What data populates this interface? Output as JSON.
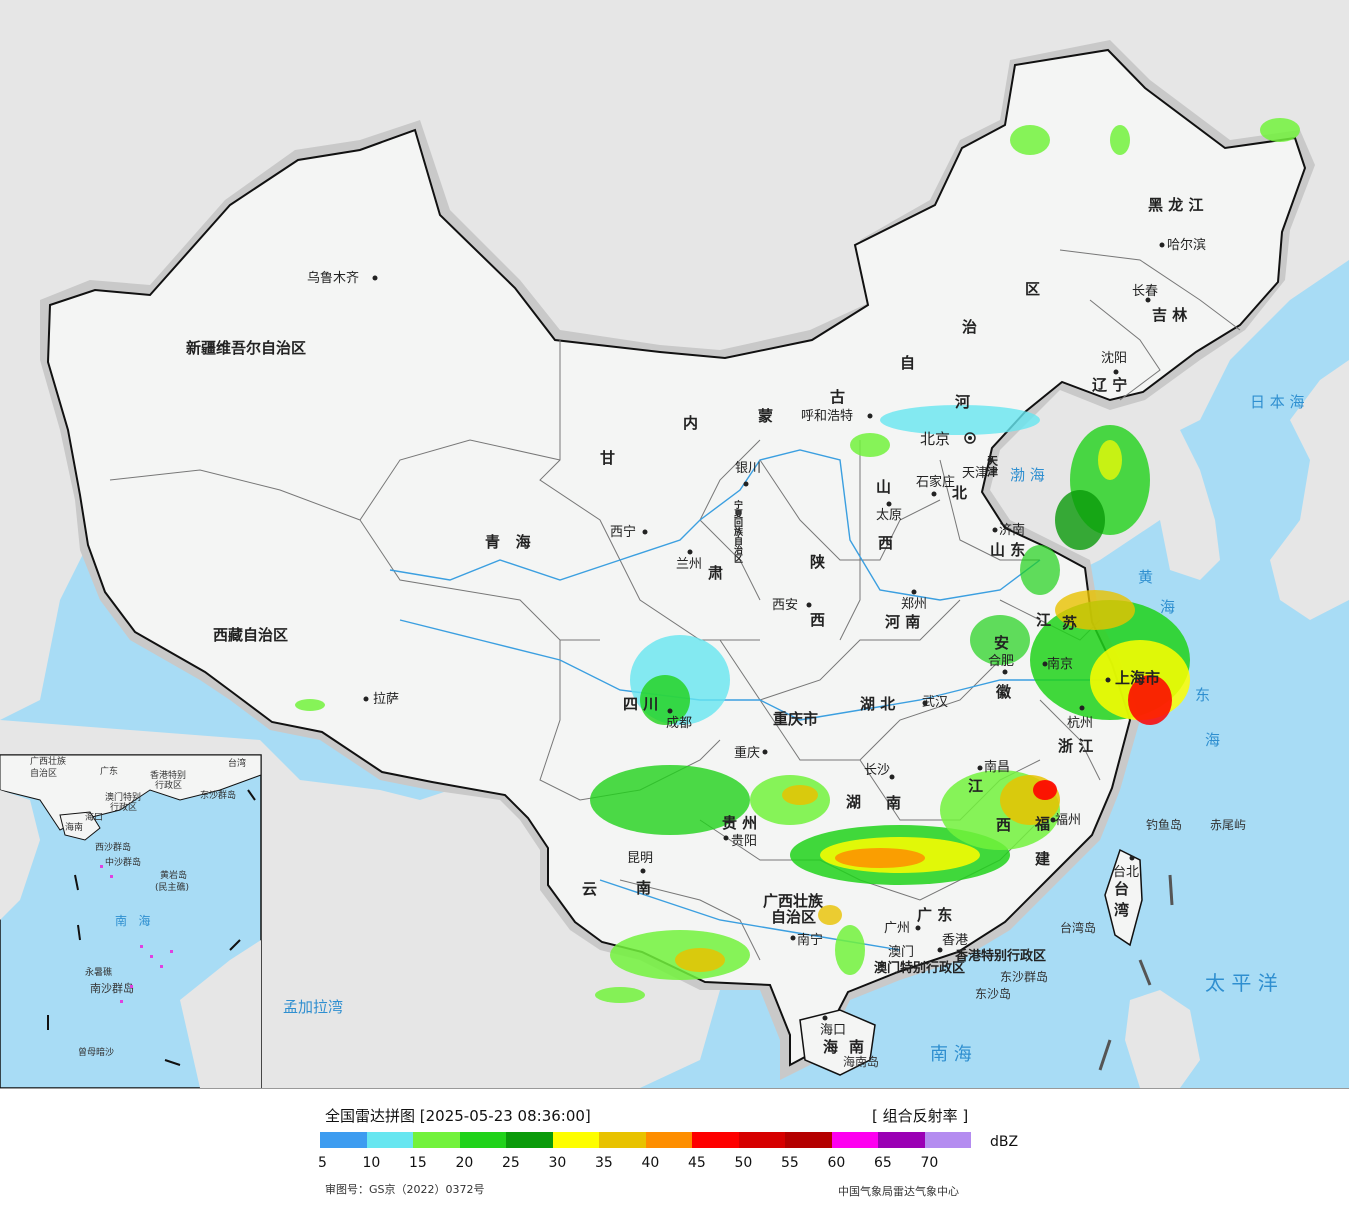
{
  "legend": {
    "title": "全国雷达拼图 [2025-05-23 08:36:00]",
    "product": "[ 组合反射率 ]",
    "unit": "dBZ",
    "colors": [
      "#3d9cf0",
      "#67e6f0",
      "#72f23c",
      "#20d21a",
      "#0a9a0a",
      "#fefe00",
      "#e8c200",
      "#fe8e00",
      "#fe0000",
      "#d60000",
      "#b40000",
      "#fe00f0",
      "#9a00b4",
      "#b48cf0"
    ],
    "ticks": [
      "5",
      "10",
      "15",
      "20",
      "25",
      "30",
      "35",
      "40",
      "45",
      "50",
      "55",
      "60",
      "65",
      "70"
    ],
    "approval": "审图号：GS京（2022）0372号",
    "org": "中国气象局雷达气象中心"
  },
  "colors": {
    "ocean": "#a8dcf5",
    "foreign_land": "#e6e6e6",
    "china_land": "#f4f5f4",
    "border": "#111111",
    "river": "#3b9fe0"
  },
  "map": {
    "regions": [
      {
        "name": "新疆维吾尔自治区",
        "class": "big"
      },
      {
        "name": "西藏自治区",
        "class": "big"
      },
      {
        "name": "青   海",
        "class": "big"
      },
      {
        "name": "甘",
        "class": "big"
      },
      {
        "name": "肃",
        "class": "big"
      },
      {
        "name": "内",
        "class": "big"
      },
      {
        "name": "蒙",
        "class": "big"
      },
      {
        "name": "古",
        "class": "big"
      },
      {
        "name": "自",
        "class": "big"
      },
      {
        "name": "治",
        "class": "big"
      },
      {
        "name": "区",
        "class": "big"
      },
      {
        "name": "黑 龙 江",
        "class": "big"
      },
      {
        "name": "吉 林",
        "class": "big"
      },
      {
        "name": "辽 宁",
        "class": "big"
      },
      {
        "name": "河",
        "class": "big"
      },
      {
        "name": "北",
        "class": "big"
      },
      {
        "name": "山",
        "class": "big"
      },
      {
        "name": "西",
        "class": "big"
      },
      {
        "name": "陕",
        "class": "big"
      },
      {
        "name": "西",
        "class": "big"
      },
      {
        "name": "河 南",
        "class": "big"
      },
      {
        "name": "山 东",
        "class": "big"
      },
      {
        "name": "四 川",
        "class": "big"
      },
      {
        "name": "重庆市",
        "class": "big"
      },
      {
        "name": "湖 北",
        "class": "big"
      },
      {
        "name": "安",
        "class": "big"
      },
      {
        "name": "徽",
        "class": "big"
      },
      {
        "name": "江",
        "class": "big"
      },
      {
        "name": "苏",
        "class": "big"
      },
      {
        "name": "浙 江",
        "class": "big"
      },
      {
        "name": "湖",
        "class": "big"
      },
      {
        "name": "南",
        "class": "big"
      },
      {
        "name": "江",
        "class": "big"
      },
      {
        "name": "西",
        "class": "big"
      },
      {
        "name": "福",
        "class": "big"
      },
      {
        "name": "建",
        "class": "big"
      },
      {
        "name": "贵 州",
        "class": "big"
      },
      {
        "name": "云",
        "class": "big"
      },
      {
        "name": "南",
        "class": "big"
      },
      {
        "name": "广西壮族",
        "class": "big"
      },
      {
        "name": "自治区",
        "class": "big"
      },
      {
        "name": "广 东",
        "class": "big"
      },
      {
        "name": "海",
        "class": "big"
      },
      {
        "name": "南",
        "class": "big"
      },
      {
        "name": "台",
        "class": "big"
      },
      {
        "name": "湾",
        "class": "big"
      },
      {
        "name": "宁夏回族自治区",
        "class": "small"
      },
      {
        "name": "天津",
        "class": "small"
      },
      {
        "name": "上海市",
        "class": "big"
      },
      {
        "name": "香港特别行政区",
        "class": "small"
      },
      {
        "name": "澳门特别行政区",
        "class": "small"
      }
    ],
    "cities": [
      "乌鲁木齐",
      "拉萨",
      "西宁",
      "兰州",
      "银川",
      "呼和浩特",
      "北京",
      "天津",
      "石家庄",
      "太原",
      "济南",
      "郑州",
      "西安",
      "成都",
      "重庆",
      "武汉",
      "合肥",
      "南京",
      "上海",
      "杭州",
      "长沙",
      "南昌",
      "福州",
      "台北",
      "贵阳",
      "昆明",
      "南宁",
      "广州",
      "澳门",
      "香港",
      "海口",
      "沈阳",
      "长春",
      "哈尔滨"
    ],
    "seas": [
      "日 本 海",
      "黄",
      "海",
      "东",
      "海",
      "太 平 洋",
      "南 海",
      "孟加拉湾",
      "渤 海"
    ],
    "islands": [
      "钓鱼岛",
      "赤尾屿",
      "台湾岛",
      "东沙群岛",
      "东沙岛",
      "海南岛"
    ],
    "inset": {
      "labels": [
        "广西壮族",
        "自治区",
        "广东",
        "台湾",
        "香港特别",
        "行政区",
        "澳门特别",
        "行政区",
        "东沙群岛",
        "海南",
        "海口",
        "西沙群岛",
        "中沙群岛",
        "黄岩岛",
        "(民主礁)",
        "南   海",
        "永暑礁",
        "南沙群岛",
        "曾母暗沙"
      ]
    }
  }
}
